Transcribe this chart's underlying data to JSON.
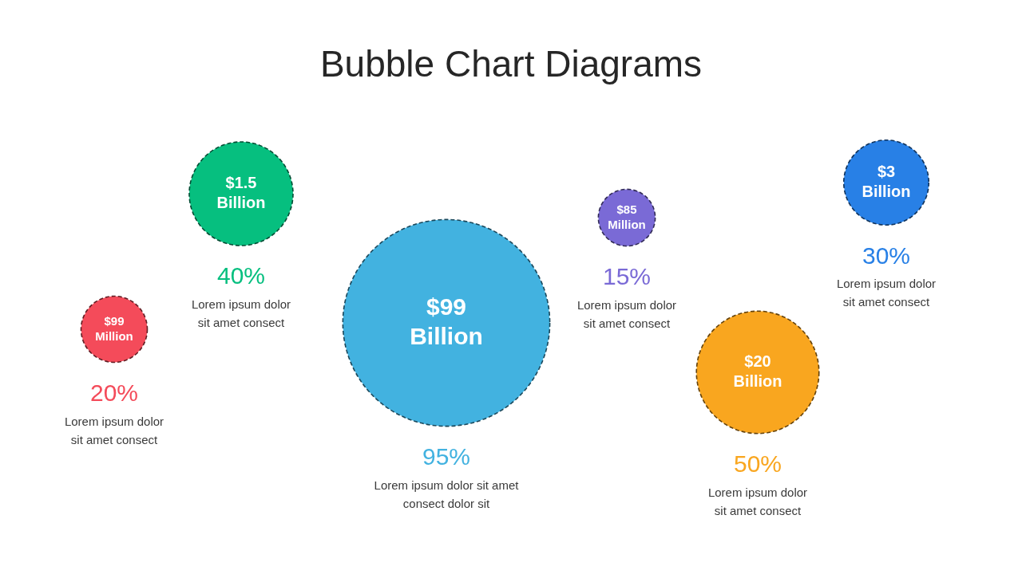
{
  "chart_data": {
    "type": "other",
    "title": "Bubble Chart Diagrams",
    "categories": [
      "$99 Million",
      "$1.5 Billion",
      "$99 Billion",
      "$85 Million",
      "$20 Billion",
      "$3 Billion"
    ],
    "values": [
      20,
      40,
      95,
      15,
      50,
      30
    ],
    "value_labels": [
      "20%",
      "40%",
      "95%",
      "15%",
      "50%",
      "30%"
    ],
    "colors": [
      "#f44b5a",
      "#06bf7f",
      "#42b2e0",
      "#7a6ad6",
      "#f9a61f",
      "#2880e6"
    ],
    "annotations": [
      "Lorem ipsum dolor sit amet consect",
      "Lorem ipsum dolor sit amet consect",
      "Lorem ipsum dolor sit amet consect dolor sit",
      "Lorem ipsum dolor sit amet consect",
      "Lorem ipsum dolor sit amet consect",
      "Lorem ipsum dolor sit amet consect"
    ]
  }
}
